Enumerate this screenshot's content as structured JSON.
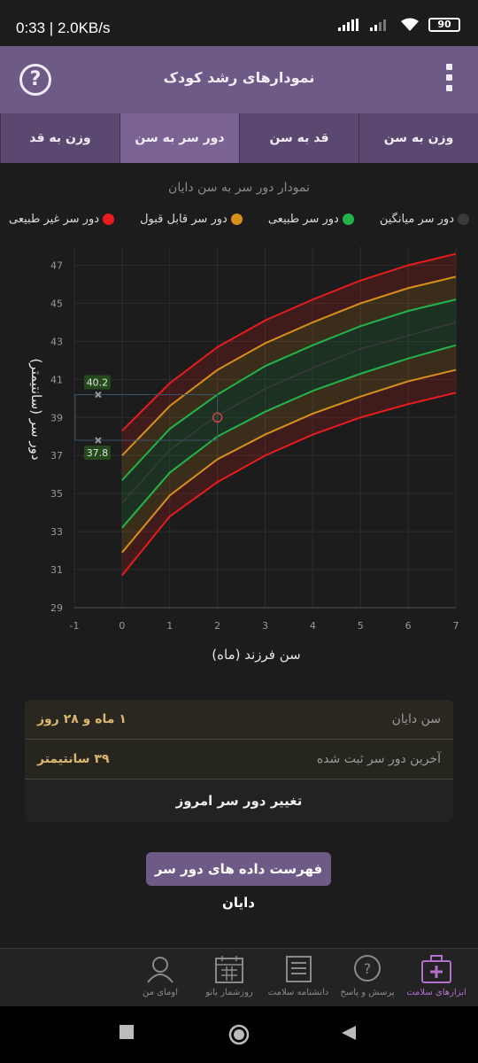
{
  "status": {
    "time": "0:33 | 2.0KB/s",
    "battery": "90"
  },
  "appbar": {
    "title": "نمودارهای رشد کودک",
    "help_icon": "?"
  },
  "tabs": [
    {
      "label": "وزن به سن",
      "active": false
    },
    {
      "label": "قد به سن",
      "active": false
    },
    {
      "label": "دور سر به سن",
      "active": true
    },
    {
      "label": "وزن به قد",
      "active": false
    }
  ],
  "chart_data": {
    "type": "line",
    "title": "نمودار دور سر به سن دایان",
    "xlabel": "سن فرزند (ماه)",
    "ylabel": "دور سر (سانتیمتر)",
    "xlim": [
      -1,
      7
    ],
    "ylim": [
      29,
      48
    ],
    "x_ticks": [
      "-1",
      "0",
      "1",
      "2",
      "3",
      "4",
      "5",
      "6",
      "7"
    ],
    "y_ticks": [
      "29",
      "31",
      "33",
      "35",
      "37",
      "39",
      "41",
      "43",
      "45",
      "47"
    ],
    "legend": [
      {
        "label": "دور سر غیر طبیعی",
        "color": "#e81c1c"
      },
      {
        "label": "دور سر قابل قبول",
        "color": "#d9901a"
      },
      {
        "label": "دور سر طبیعی",
        "color": "#22b34a"
      },
      {
        "label": "دور سر میانگین",
        "color": "#3a3a3a"
      }
    ],
    "x": [
      0,
      1,
      2,
      3,
      4,
      5,
      6,
      7
    ],
    "series": [
      {
        "color": "#e81c1c",
        "values": [
          30.7,
          33.8,
          35.6,
          37.0,
          38.1,
          39.0,
          39.7,
          40.3
        ]
      },
      {
        "color": "#d9901a",
        "values": [
          31.9,
          34.9,
          36.8,
          38.1,
          39.2,
          40.1,
          40.9,
          41.5
        ]
      },
      {
        "color": "#22b34a",
        "values": [
          33.2,
          36.1,
          38.0,
          39.3,
          40.4,
          41.3,
          42.1,
          42.8
        ]
      },
      {
        "color": "#3a3a3a",
        "values": [
          34.5,
          37.3,
          39.1,
          40.5,
          41.6,
          42.6,
          43.3,
          44.0
        ]
      },
      {
        "color": "#22b34a",
        "values": [
          35.7,
          38.4,
          40.2,
          41.7,
          42.8,
          43.8,
          44.6,
          45.2
        ]
      },
      {
        "color": "#d9901a",
        "values": [
          37.0,
          39.6,
          41.5,
          42.9,
          44.0,
          45.0,
          45.8,
          46.4
        ]
      },
      {
        "color": "#e81c1c",
        "values": [
          38.3,
          40.8,
          42.7,
          44.1,
          45.2,
          46.2,
          47.0,
          47.6
        ]
      }
    ],
    "child_point": {
      "x": 2.0,
      "y": 39.0
    },
    "range_markers": [
      {
        "x": -0.5,
        "y": 40.2,
        "label": "40.2"
      },
      {
        "x": -0.5,
        "y": 37.8,
        "label": "37.8"
      }
    ]
  },
  "info": {
    "age_label": "سن دایان",
    "age_value": "۱ ماه و ۲۸ روز",
    "last_label": "آخرین دور سر ثبت شده",
    "last_value": "۳۹ سانتیمتر",
    "change_button": "تغییر دور سر امروز"
  },
  "list_button": "فهرست داده های دور سر دایان",
  "bottom_nav": [
    {
      "label": "ابزارهای سلامت",
      "icon": "first-aid-kit-icon",
      "active": true
    },
    {
      "label": "پرسش و پاسخ",
      "icon": "question-bubble-icon",
      "active": false
    },
    {
      "label": "دانشنامه سلامت",
      "icon": "newspaper-icon",
      "active": false
    },
    {
      "label": "روزشمار بانو",
      "icon": "calendar-icon",
      "active": false
    },
    {
      "label": "اومای من",
      "icon": "user-avatar-icon",
      "active": false
    }
  ],
  "colors": {
    "accent": "#6e5a86",
    "tab_active": "#7b6494",
    "nav_active": "#b26fcc"
  }
}
